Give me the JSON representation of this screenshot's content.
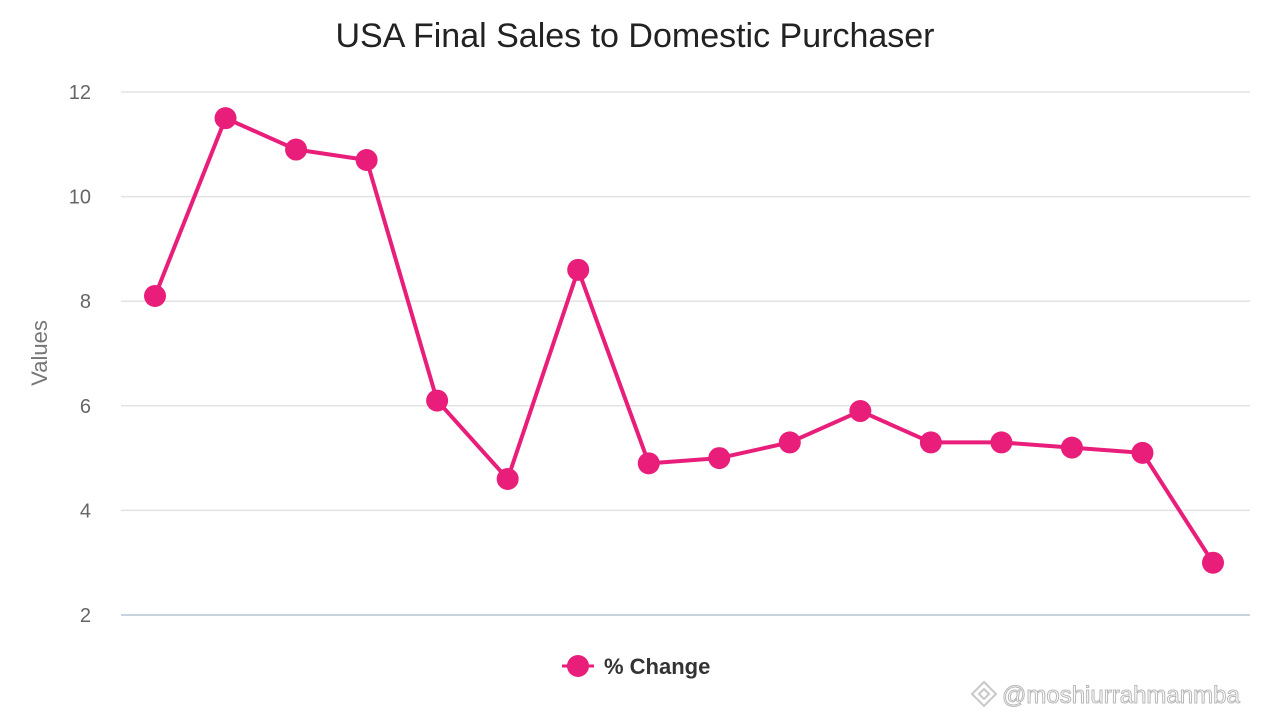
{
  "chart_data": {
    "type": "line",
    "title": "USA Final Sales to Domestic Purchaser",
    "xlabel": "",
    "ylabel": "Values",
    "ylim": [
      2,
      12
    ],
    "yticks": [
      2,
      4,
      6,
      8,
      10,
      12
    ],
    "grid": true,
    "legend_position": "bottom-center",
    "series": [
      {
        "name": "% Change",
        "color": "#e91e7a",
        "values": [
          8.1,
          11.5,
          10.9,
          10.7,
          6.1,
          4.6,
          8.6,
          4.9,
          5.0,
          5.3,
          5.9,
          5.3,
          5.3,
          5.2,
          5.1,
          3.0
        ]
      }
    ]
  },
  "watermark": {
    "text": "@moshiurrahmanmba",
    "icon": "diamond-logo-icon"
  }
}
